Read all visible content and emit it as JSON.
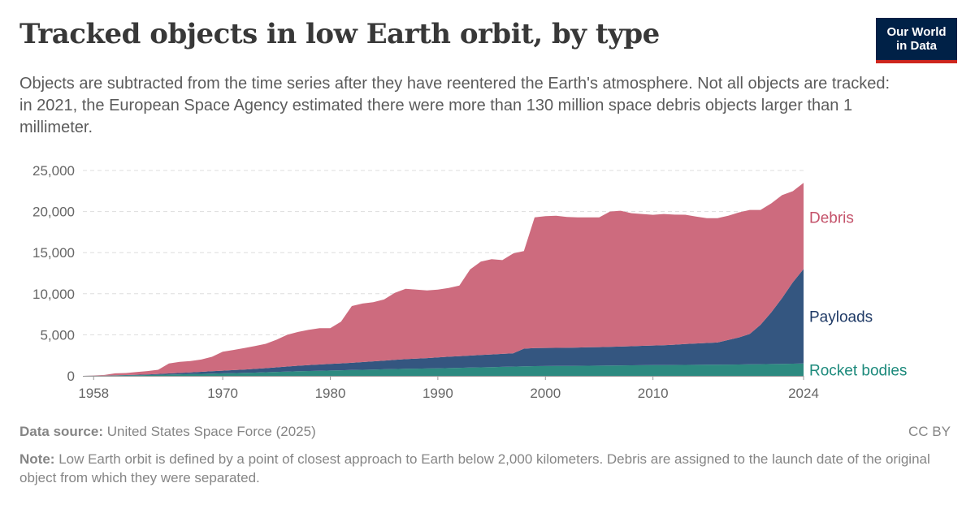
{
  "header": {
    "title": "Tracked objects in low Earth orbit, by type",
    "subtitle": "Objects are subtracted from the time series after they have reentered the Earth's atmosphere. Not all objects are tracked: in 2021, the European Space Agency estimated there were more than 130 million space debris objects larger than 1 millimeter.",
    "logo_line1": "Our World",
    "logo_line2": "in Data"
  },
  "footer": {
    "source_label": "Data source:",
    "source_text": "United States Space Force (2025)",
    "license": "CC BY",
    "note_label": "Note:",
    "note_text": "Low Earth orbit is defined by a point of closest approach to Earth below 2,000 kilometers. Debris are assigned to the launch date of the original object from which they were separated."
  },
  "colors": {
    "debris": "#cd6b7e",
    "payloads": "#345680",
    "rocket_bodies": "#2d8a80",
    "debris_label": "#c4526a",
    "payloads_label": "#1f3a66",
    "rocket_label": "#1d8a7c",
    "grid": "#dddddd",
    "axis": "#666666"
  },
  "chart_data": {
    "type": "area",
    "stacked": true,
    "xlim": [
      1957,
      2024
    ],
    "ylim": [
      0,
      25000
    ],
    "y_ticks": [
      0,
      5000,
      10000,
      15000,
      20000,
      25000
    ],
    "y_tick_labels": [
      "0",
      "5,000",
      "10,000",
      "15,000",
      "20,000",
      "25,000"
    ],
    "x_ticks": [
      1958,
      1970,
      1980,
      1990,
      2000,
      2010,
      2024
    ],
    "x_tick_labels": [
      "1958",
      "1970",
      "1980",
      "1990",
      "2000",
      "2010",
      "2024"
    ],
    "grid": "horizontal dashed",
    "legend": "labels at right end of series",
    "x": [
      1957,
      1958,
      1959,
      1960,
      1961,
      1962,
      1963,
      1964,
      1965,
      1966,
      1967,
      1968,
      1969,
      1970,
      1971,
      1972,
      1973,
      1974,
      1975,
      1976,
      1977,
      1978,
      1979,
      1980,
      1981,
      1982,
      1983,
      1984,
      1985,
      1986,
      1987,
      1988,
      1989,
      1990,
      1991,
      1992,
      1993,
      1994,
      1995,
      1996,
      1997,
      1998,
      1999,
      2000,
      2001,
      2002,
      2003,
      2004,
      2005,
      2006,
      2007,
      2008,
      2009,
      2010,
      2011,
      2012,
      2013,
      2014,
      2015,
      2016,
      2017,
      2018,
      2019,
      2020,
      2021,
      2022,
      2023,
      2024
    ],
    "series": [
      {
        "name": "Rocket bodies",
        "values": [
          0,
          10,
          20,
          40,
          60,
          80,
          100,
          130,
          160,
          190,
          220,
          250,
          280,
          310,
          340,
          370,
          400,
          440,
          480,
          520,
          560,
          590,
          620,
          650,
          680,
          710,
          740,
          770,
          800,
          830,
          860,
          880,
          900,
          920,
          950,
          980,
          1010,
          1040,
          1070,
          1100,
          1130,
          1160,
          1190,
          1200,
          1210,
          1220,
          1230,
          1240,
          1250,
          1260,
          1270,
          1280,
          1290,
          1300,
          1310,
          1320,
          1330,
          1340,
          1350,
          1360,
          1370,
          1380,
          1400,
          1420,
          1440,
          1460,
          1480,
          1500
        ]
      },
      {
        "name": "Payloads",
        "values": [
          0,
          5,
          10,
          20,
          40,
          60,
          80,
          110,
          140,
          170,
          200,
          240,
          280,
          320,
          360,
          400,
          450,
          500,
          560,
          620,
          680,
          720,
          760,
          800,
          840,
          880,
          940,
          1000,
          1060,
          1120,
          1180,
          1220,
          1260,
          1320,
          1380,
          1420,
          1460,
          1500,
          1540,
          1580,
          1620,
          2150,
          2200,
          2200,
          2200,
          2200,
          2220,
          2240,
          2250,
          2270,
          2300,
          2330,
          2370,
          2400,
          2430,
          2470,
          2550,
          2600,
          2650,
          2700,
          3000,
          3300,
          3700,
          4800,
          6300,
          8000,
          9900,
          11500
        ]
      },
      {
        "name": "Debris",
        "values": [
          0,
          30,
          80,
          250,
          250,
          320,
          400,
          500,
          1200,
          1340,
          1380,
          1500,
          1760,
          2300,
          2450,
          2620,
          2780,
          2960,
          3360,
          3860,
          4110,
          4290,
          4420,
          4350,
          5080,
          6910,
          7120,
          7200,
          7440,
          8150,
          8560,
          8400,
          8240,
          8260,
          8370,
          8600,
          10480,
          11360,
          11590,
          11410,
          12150,
          11890,
          15910,
          16050,
          16090,
          15930,
          15850,
          15820,
          15800,
          16470,
          16530,
          16190,
          16040,
          15900,
          15960,
          15830,
          15730,
          15460,
          15200,
          15140,
          15130,
          15220,
          15100,
          13980,
          13260,
          12540,
          11100,
          10500
        ]
      }
    ]
  }
}
